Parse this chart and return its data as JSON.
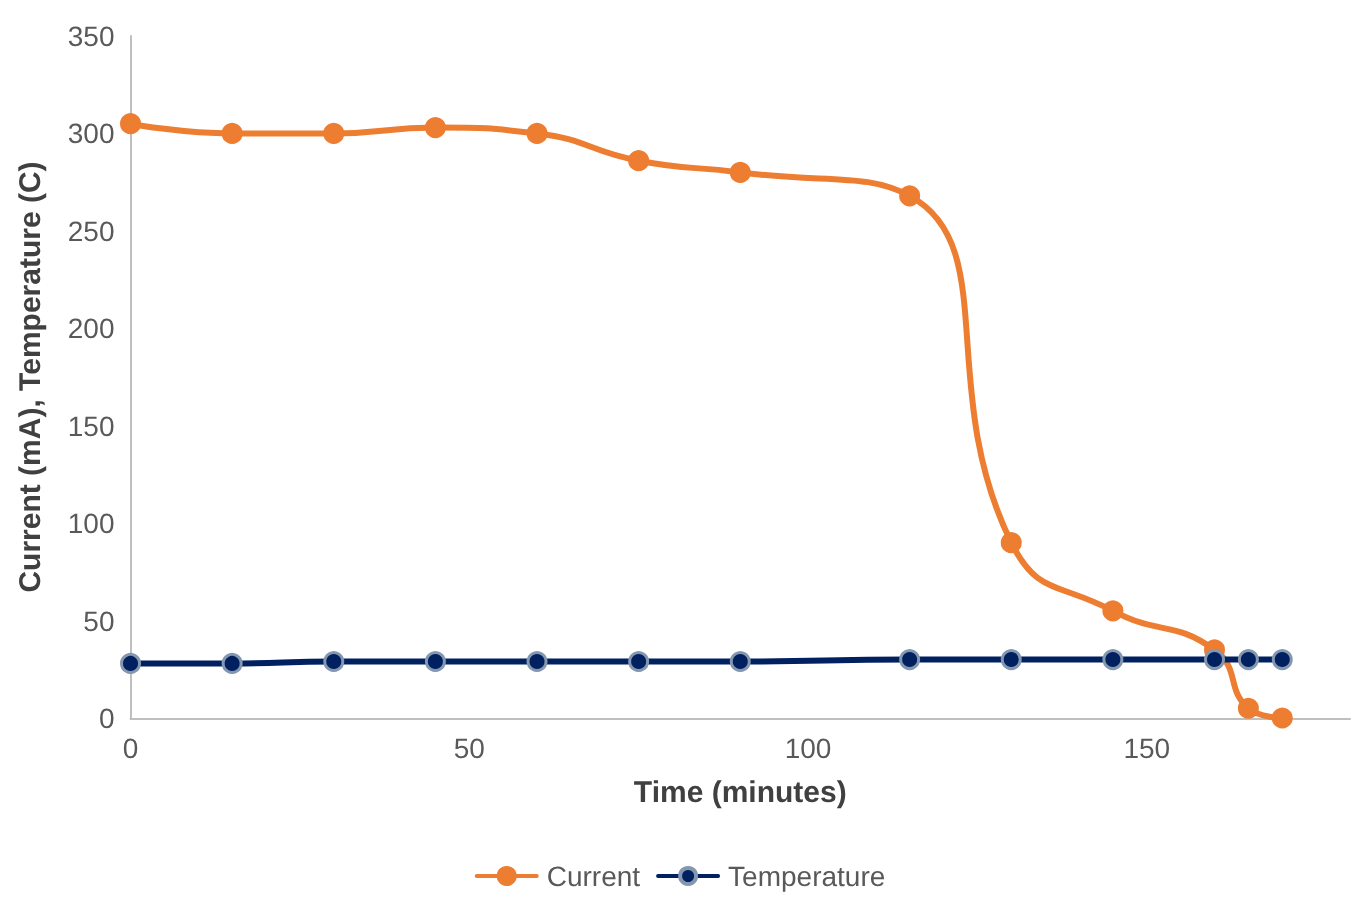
{
  "chart_data": {
    "type": "line",
    "xlabel": "Time (minutes)",
    "ylabel": "Current (mA), Temperature (C)",
    "x": [
      0,
      15,
      30,
      45,
      60,
      75,
      90,
      115,
      130,
      145,
      160,
      165,
      170
    ],
    "series": [
      {
        "name": "Current",
        "color": "#ed7d31",
        "values": [
          305,
          300,
          300,
          303,
          300,
          286,
          280,
          268,
          90,
          55,
          35,
          5,
          0
        ]
      },
      {
        "name": "Temperature",
        "color": "#002060",
        "values": [
          28,
          28,
          29,
          29,
          29,
          29,
          29,
          30,
          30,
          30,
          30,
          30,
          30
        ]
      }
    ],
    "xlim": [
      0,
      180
    ],
    "xticks": [
      0,
      50,
      100,
      150
    ],
    "ylim": [
      0,
      350
    ],
    "yticks": [
      0,
      50,
      100,
      150,
      200,
      250,
      300,
      350
    ],
    "grid": false,
    "legend": "bottom",
    "marker": "circle",
    "line_style": "solid"
  }
}
